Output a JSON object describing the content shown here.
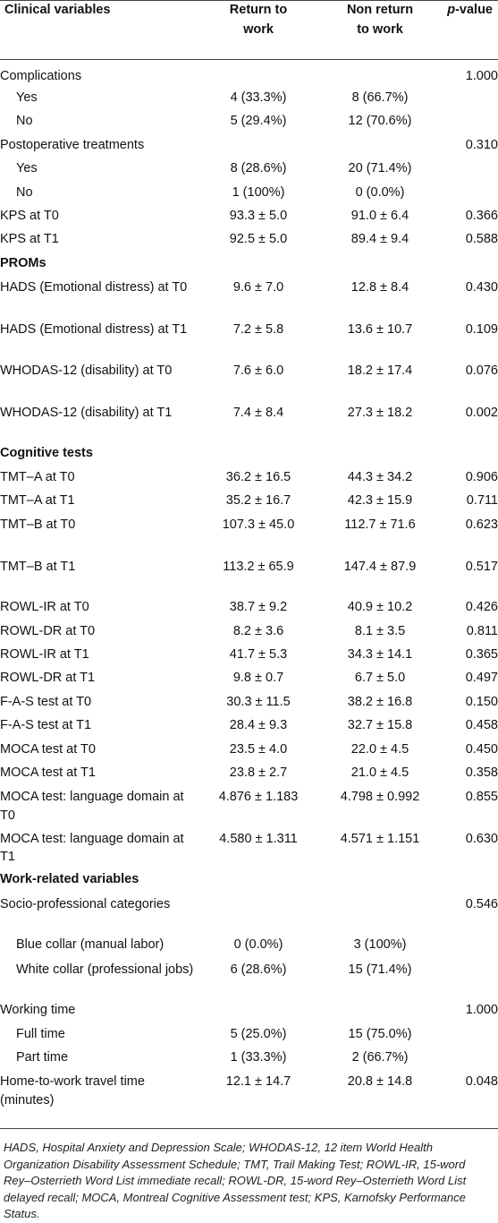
{
  "table": {
    "headers": {
      "variable": "Clinical variables",
      "return_line1": "Return to",
      "return_line2": "work",
      "nonreturn_line1": "Non return",
      "nonreturn_line2": "to work",
      "pvalue_italic": "p",
      "pvalue_rest": "-value"
    },
    "rows": [
      {
        "label": "Complications",
        "ret": "",
        "non": "",
        "p": "1.000"
      },
      {
        "label": "Yes",
        "ret": "4 (33.3%)",
        "non": "8 (66.7%)",
        "p": ""
      },
      {
        "label": "No",
        "ret": "5 (29.4%)",
        "non": "12 (70.6%)",
        "p": ""
      },
      {
        "label": "Postoperative treatments",
        "ret": "",
        "non": "",
        "p": "0.310"
      },
      {
        "label": "Yes",
        "ret": "8 (28.6%)",
        "non": "20 (71.4%)",
        "p": ""
      },
      {
        "label": "No",
        "ret": "1 (100%)",
        "non": "0 (0.0%)",
        "p": ""
      },
      {
        "label": "KPS at T0",
        "ret": "93.3 ± 5.0",
        "non": "91.0 ± 6.4",
        "p": "0.366"
      },
      {
        "label": "KPS at T1",
        "ret": "92.5 ± 5.0",
        "non": "89.4 ± 9.4",
        "p": "0.588"
      },
      {
        "label": "PROMs",
        "ret": "",
        "non": "",
        "p": ""
      },
      {
        "label": "HADS (Emotional distress) at T0",
        "ret": "9.6 ± 7.0",
        "non": "12.8 ± 8.4",
        "p": "0.430"
      },
      {
        "label": "HADS (Emotional distress) at T1",
        "ret": "7.2 ± 5.8",
        "non": "13.6 ± 10.7",
        "p": "0.109"
      },
      {
        "label": "WHODAS-12 (disability) at T0",
        "ret": "7.6 ± 6.0",
        "non": "18.2 ± 17.4",
        "p": "0.076"
      },
      {
        "label": "WHODAS-12 (disability) at T1",
        "ret": "7.4 ± 8.4",
        "non": "27.3 ± 18.2",
        "p": "0.002"
      },
      {
        "label": "Cognitive tests",
        "ret": "",
        "non": "",
        "p": ""
      },
      {
        "label": "TMT–A at T0",
        "ret": "36.2 ± 16.5",
        "non": "44.3 ± 34.2",
        "p": "0.906"
      },
      {
        "label": "TMT–A at T1",
        "ret": "35.2 ± 16.7",
        "non": "42.3 ± 15.9",
        "p": "0.711"
      },
      {
        "label": "TMT–B at T0",
        "ret": "107.3 ± 45.0",
        "non": "112.7 ± 71.6",
        "p": "0.623"
      },
      {
        "label": "TMT–B at T1",
        "ret": "113.2 ± 65.9",
        "non": "147.4 ± 87.9",
        "p": "0.517"
      },
      {
        "label": "ROWL-IR at T0",
        "ret": "38.7 ± 9.2",
        "non": "40.9 ± 10.2",
        "p": "0.426"
      },
      {
        "label": "ROWL-DR at T0",
        "ret": "8.2 ± 3.6",
        "non": "8.1 ± 3.5",
        "p": "0.811"
      },
      {
        "label": "ROWL-IR at T1",
        "ret": "41.7 ± 5.3",
        "non": "34.3 ± 14.1",
        "p": "0.365"
      },
      {
        "label": "ROWL-DR at T1",
        "ret": "9.8 ± 0.7",
        "non": "6.7 ± 5.0",
        "p": "0.497"
      },
      {
        "label": "F-A-S test at T0",
        "ret": "30.3 ± 11.5",
        "non": "38.2 ± 16.8",
        "p": "0.150"
      },
      {
        "label": "F-A-S test at T1",
        "ret": "28.4 ± 9.3",
        "non": "32.7 ± 15.8",
        "p": "0.458"
      },
      {
        "label": "MOCA test at T0",
        "ret": "23.5 ± 4.0",
        "non": "22.0 ± 4.5",
        "p": "0.450"
      },
      {
        "label": "MOCA test at T1",
        "ret": "23.8 ± 2.7",
        "non": "21.0 ± 4.5",
        "p": "0.358"
      },
      {
        "label": "MOCA test: language domain at T0",
        "ret": "4.876 ± 1.183",
        "non": "4.798 ± 0.992",
        "p": "0.855"
      },
      {
        "label": "MOCA test: language domain at T1",
        "ret": "4.580 ± 1.311",
        "non": "4.571 ± 1.151",
        "p": "0.630"
      },
      {
        "label": "Work-related variables",
        "ret": "",
        "non": "",
        "p": ""
      },
      {
        "label": "Socio-professional categories",
        "ret": "",
        "non": "",
        "p": "0.546"
      },
      {
        "label": "Blue collar (manual labor)",
        "ret": "0 (0.0%)",
        "non": "3 (100%)",
        "p": ""
      },
      {
        "label": "White collar (professional jobs)",
        "ret": "6 (28.6%)",
        "non": "15 (71.4%)",
        "p": ""
      },
      {
        "label": "Working time",
        "ret": "",
        "non": "",
        "p": "1.000"
      },
      {
        "label": "Full time",
        "ret": "5 (25.0%)",
        "non": "15 (75.0%)",
        "p": ""
      },
      {
        "label": "Part time",
        "ret": "1 (33.3%)",
        "non": "2 (66.7%)",
        "p": ""
      },
      {
        "label": "Home-to-work travel time (minutes)",
        "ret": "12.1 ± 14.7",
        "non": "20.8 ± 14.8",
        "p": "0.048"
      }
    ]
  },
  "footnote": "HADS, Hospital Anxiety and Depression Scale; WHODAS-12, 12 item World Health Organization Disability Assessment Schedule; TMT, Trail Making Test; ROWL-IR, 15-word Rey–Osterrieth Word List immediate recall; ROWL-DR, 15-word Rey–Osterrieth Word List delayed recall; MOCA, Montreal Cognitive Assessment test; KPS, Karnofsky Performance Status."
}
